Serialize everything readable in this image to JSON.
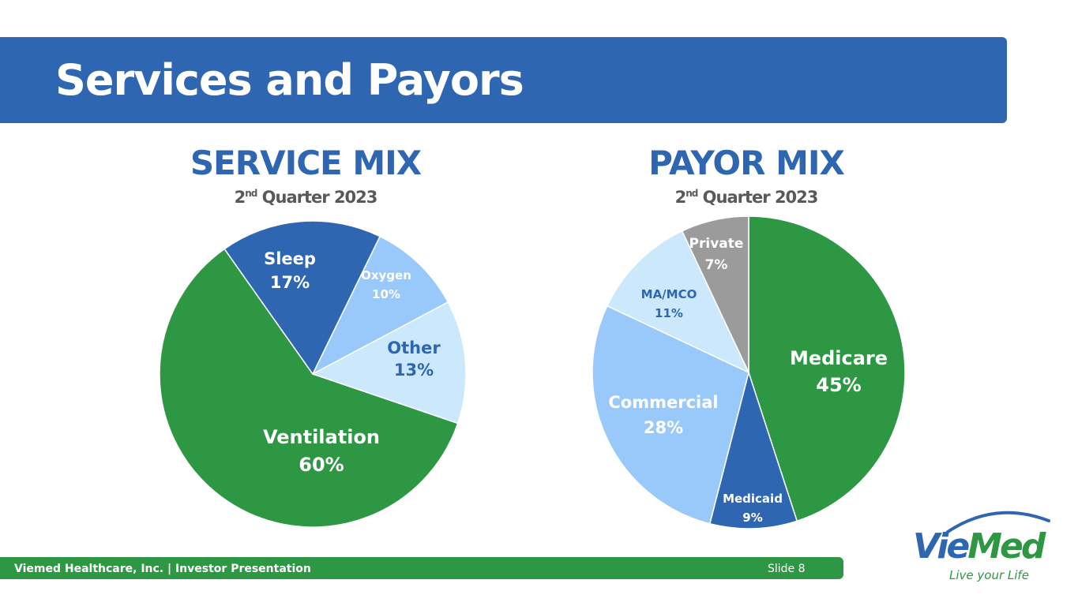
{
  "slide": {
    "title": "Services and Payors",
    "footer_text": "Viemed Healthcare, Inc. | Investor Presentation",
    "slide_number": "Slide 8"
  },
  "logo": {
    "word_vie": "Vie",
    "word_med": "Med",
    "tagline": "Live your Life",
    "colors": {
      "blue": "#2e66b1",
      "green": "#2e9744"
    }
  },
  "chart_data": [
    {
      "type": "pie",
      "title": "SERVICE MIX",
      "subtitle_prefix": "2",
      "subtitle_sup": "nd",
      "subtitle_rest": " Quarter 2023",
      "slices": [
        {
          "label": "Oxygen",
          "value": 10,
          "pct": "10%",
          "color": "#99c9fa",
          "text_color": "#ffffff"
        },
        {
          "label": "Other",
          "value": 13,
          "pct": "13%",
          "color": "#cce8fc",
          "text_color": "#2e66b1"
        },
        {
          "label": "Ventilation",
          "value": 60,
          "pct": "60%",
          "color": "#2e9744",
          "text_color": "#ffffff"
        },
        {
          "label": "Sleep",
          "value": 17,
          "pct": "17%",
          "color": "#2e66b1",
          "text_color": "#ffffff"
        }
      ]
    },
    {
      "type": "pie",
      "title": "PAYOR MIX",
      "subtitle_prefix": "2",
      "subtitle_sup": "nd",
      "subtitle_rest": " Quarter 2023",
      "slices": [
        {
          "label": "Medicare",
          "value": 45,
          "pct": "45%",
          "color": "#2e9744",
          "text_color": "#ffffff"
        },
        {
          "label": "Medicaid",
          "value": 9,
          "pct": "9%",
          "color": "#2e66b1",
          "text_color": "#ffffff"
        },
        {
          "label": "Commercial",
          "value": 28,
          "pct": "28%",
          "color": "#99c9fa",
          "text_color": "#ffffff"
        },
        {
          "label": "MA/MCO",
          "value": 11,
          "pct": "11%",
          "color": "#cce8fc",
          "text_color": "#2e66b1"
        },
        {
          "label": "Private",
          "value": 7,
          "pct": "7%",
          "color": "#9b9b9b",
          "text_color": "#ffffff"
        }
      ]
    }
  ]
}
